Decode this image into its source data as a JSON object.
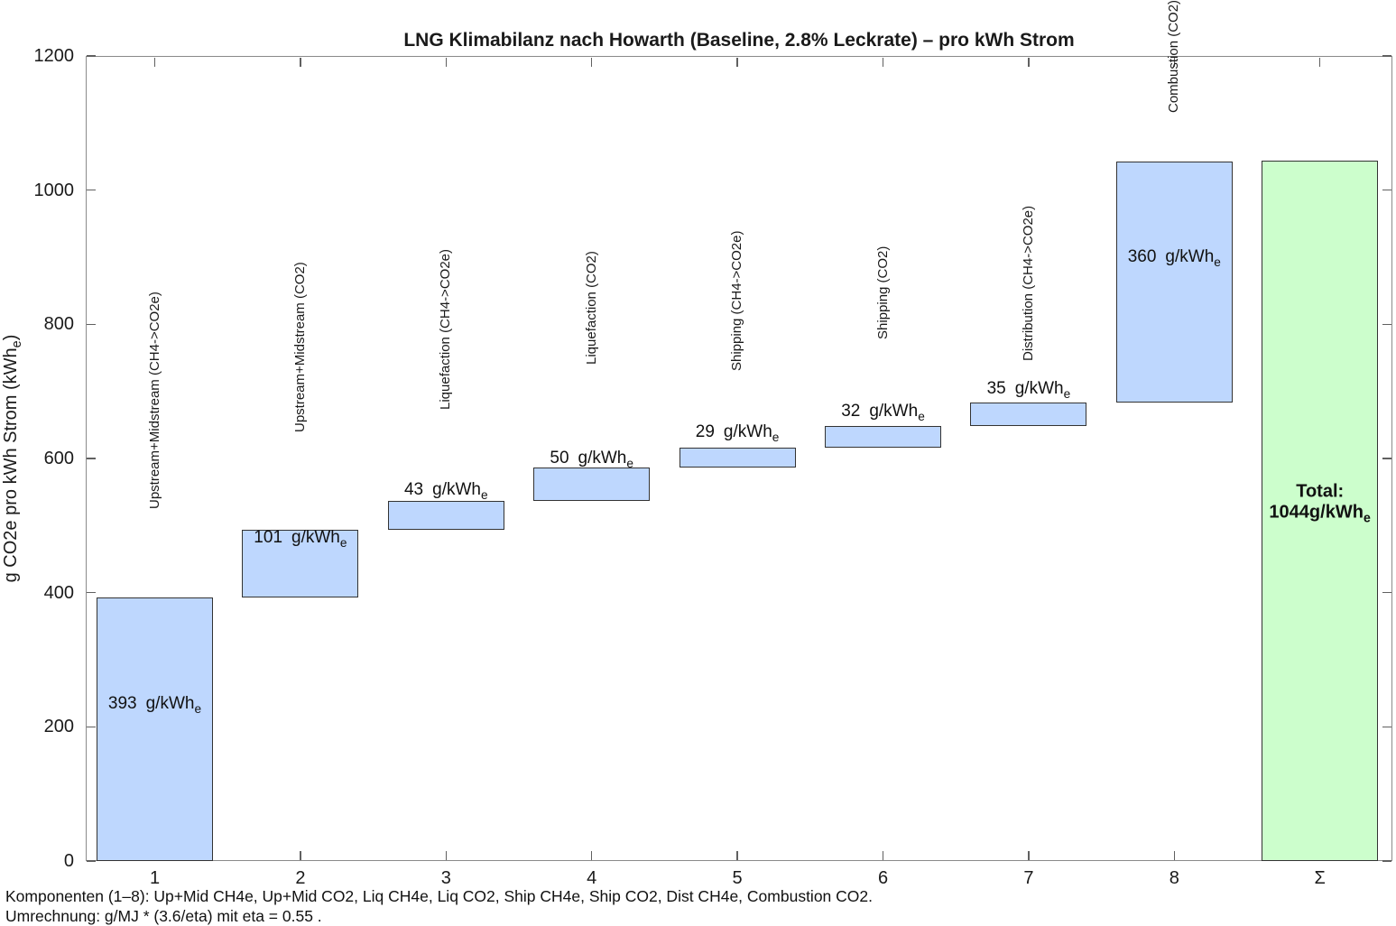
{
  "title": "LNG Klimabilanz nach Howarth (Baseline, 2.8% Leckrate) – pro kWh Strom",
  "y_axis": {
    "label_main": "g CO2e pro kWh Strom (kWh",
    "label_sub": "e",
    "label_suffix": ")",
    "tick_labels": [
      "0",
      "200",
      "400",
      "600",
      "800",
      "1000",
      "1200"
    ]
  },
  "x_axis": {
    "tick_labels": [
      "1",
      "2",
      "3",
      "4",
      "5",
      "6",
      "7",
      "8",
      "Σ"
    ]
  },
  "unit": {
    "text": "g/kWh",
    "sub": "e"
  },
  "footer": {
    "line1": "Komponenten (1–8): Up+Mid CH4e, Up+Mid CO2, Liq CH4e, Liq CO2, Ship CH4e, Ship CO2, Dist CH4e, Combustion CO2.",
    "line2": "Umrechnung: g/MJ * (3.6/eta) mit eta = 0.55 ."
  },
  "colors": {
    "segment_fill": "#bed7fe",
    "segment_edge": "#333333",
    "total_fill": "#ccfecc",
    "total_edge": "#333333",
    "axis_line": "#8a8a8a",
    "tick": "#606060"
  },
  "chart_data": {
    "type": "bar",
    "subtype": "waterfall",
    "title": "LNG Klimabilanz nach Howarth (Baseline, 2.8% Leckrate) – pro kWh Strom",
    "ylabel": "g CO2e pro kWh Strom (kWhe)",
    "ylim": [
      0,
      1200
    ],
    "yticks": [
      0,
      200,
      400,
      600,
      800,
      1000,
      1200
    ],
    "grid": false,
    "legend": false,
    "categories": [
      "1",
      "2",
      "3",
      "4",
      "5",
      "6",
      "7",
      "8",
      "Σ"
    ],
    "segments": [
      {
        "category": "1",
        "label": "Upstream+Midstream (CH4->CO2e)",
        "start": 0,
        "value": 393,
        "end": 393
      },
      {
        "category": "2",
        "label": "Upstream+Midstream (CO2)",
        "start": 393,
        "value": 101,
        "end": 494
      },
      {
        "category": "3",
        "label": "Liquefaction (CH4->CO2e)",
        "start": 494,
        "value": 43,
        "end": 537
      },
      {
        "category": "4",
        "label": "Liquefaction (CO2)",
        "start": 537,
        "value": 50,
        "end": 587
      },
      {
        "category": "5",
        "label": "Shipping (CH4->CO2e)",
        "start": 587,
        "value": 29,
        "end": 616
      },
      {
        "category": "6",
        "label": "Shipping (CO2)",
        "start": 616,
        "value": 32,
        "end": 648
      },
      {
        "category": "7",
        "label": "Distribution (CH4->CO2e)",
        "start": 648,
        "value": 35,
        "end": 683
      },
      {
        "category": "8",
        "label": "Combustion (CO2)",
        "start": 683,
        "value": 360,
        "end": 1043
      }
    ],
    "total": {
      "category": "Σ",
      "label_line1": "Total:",
      "start": 0,
      "value": 1044,
      "end": 1044
    }
  }
}
